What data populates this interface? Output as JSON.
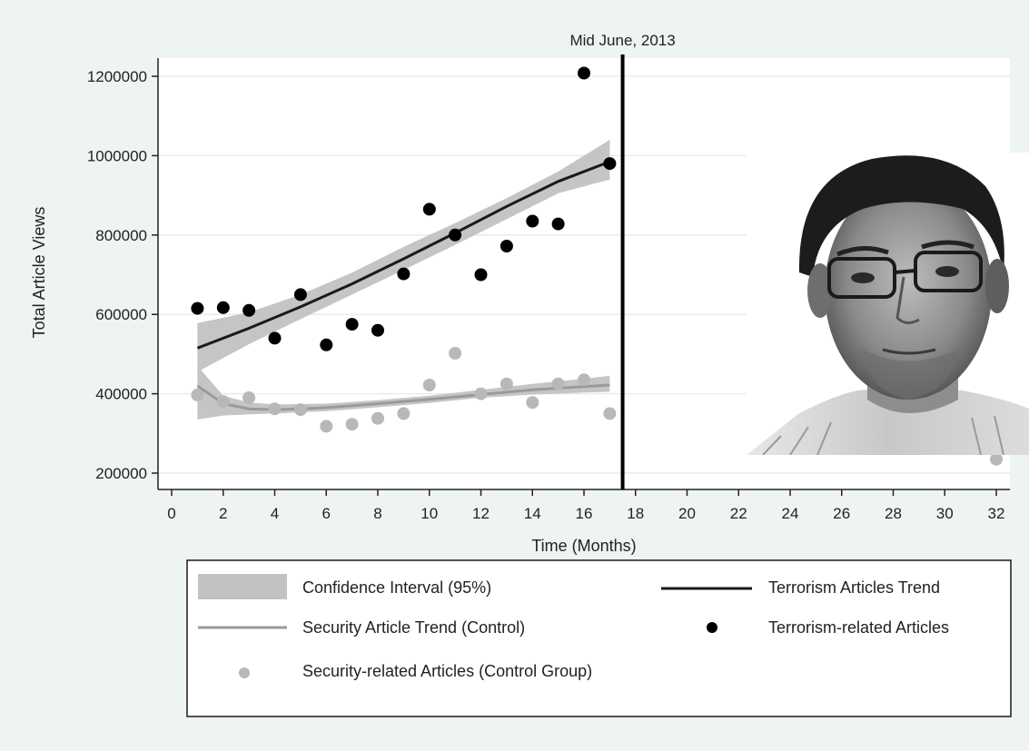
{
  "chart_data": {
    "type": "scatter",
    "xlabel": "Time (Months)",
    "ylabel": "Total Article Views",
    "xlim": [
      -0.5,
      32.5
    ],
    "ylim": [
      170000,
      1240000
    ],
    "xticks": [
      0,
      2,
      4,
      6,
      8,
      10,
      12,
      14,
      16,
      18,
      20,
      22,
      24,
      26,
      28,
      30,
      32
    ],
    "yticks": [
      200000,
      400000,
      600000,
      800000,
      1000000,
      1200000
    ],
    "grid": true,
    "legend_position": "bottom",
    "vline": {
      "x": 17.5,
      "label": "Mid June, 2013"
    },
    "confidence_bands": [
      {
        "name": "Confidence Interval (95%)",
        "x": [
          1,
          3,
          5,
          7,
          9,
          11,
          13,
          15,
          17
        ],
        "lower": [
          455000,
          525000,
          588000,
          650000,
          712000,
          775000,
          840000,
          905000,
          940000
        ],
        "upper": [
          578000,
          605000,
          650000,
          705000,
          770000,
          830000,
          893000,
          960000,
          1040000
        ]
      },
      {
        "name": "Confidence Interval (95%)",
        "x": [
          1,
          2,
          3,
          4,
          6,
          8,
          10,
          12,
          14,
          16,
          17
        ],
        "lower": [
          335000,
          345000,
          348000,
          350000,
          356000,
          366000,
          377000,
          390000,
          398000,
          403000,
          405000
        ],
        "upper": [
          470000,
          395000,
          378000,
          373000,
          375000,
          384000,
          395000,
          410000,
          425000,
          438000,
          445000
        ]
      }
    ],
    "series": [
      {
        "name": "Terrorism Articles Trend",
        "kind": "line",
        "color": "#1a1a1a",
        "x": [
          1,
          3,
          5,
          7,
          9,
          11,
          13,
          15,
          17
        ],
        "y": [
          515000,
          565000,
          619000,
          677000,
          740000,
          805000,
          872000,
          935000,
          985000
        ]
      },
      {
        "name": "Security Article Trend (Control)",
        "kind": "line",
        "color": "#9a9a9a",
        "x": [
          1,
          2,
          3,
          4,
          5,
          6,
          8,
          10,
          12,
          14,
          16,
          17
        ],
        "y": [
          420000,
          375000,
          362000,
          360000,
          362000,
          365000,
          375000,
          386000,
          398000,
          410000,
          418000,
          422000
        ]
      },
      {
        "name": "Terrorism-related Articles",
        "kind": "scatter",
        "color": "#000000",
        "x": [
          1,
          2,
          3,
          4,
          5,
          6,
          7,
          8,
          9,
          10,
          11,
          12,
          13,
          14,
          15,
          16,
          17
        ],
        "y": [
          615000,
          617000,
          610000,
          540000,
          650000,
          523000,
          575000,
          560000,
          702000,
          865000,
          800000,
          700000,
          772000,
          835000,
          828000,
          1208000,
          980000
        ]
      },
      {
        "name": "Security-related Articles (Control Group)",
        "kind": "scatter",
        "color": "#b8b8b8",
        "x": [
          1,
          2,
          3,
          4,
          5,
          6,
          7,
          8,
          9,
          10,
          11,
          12,
          13,
          14,
          15,
          16,
          17,
          32
        ],
        "y": [
          397000,
          380000,
          390000,
          362000,
          360000,
          318000,
          323000,
          338000,
          350000,
          422000,
          502000,
          400000,
          425000,
          378000,
          425000,
          435000,
          350000,
          235000
        ]
      }
    ],
    "legend": [
      {
        "label": "Confidence Interval (95%)",
        "symbol": "band"
      },
      {
        "label": "Terrorism Articles Trend",
        "symbol": "dark-line"
      },
      {
        "label": "Security Article Trend (Control)",
        "symbol": "gray-line"
      },
      {
        "label": "Terrorism-related Articles",
        "symbol": "dark-dot"
      },
      {
        "label": "Security-related Articles (Control Group)",
        "symbol": "gray-dot"
      }
    ],
    "colors": {
      "band": "#c2c2c2",
      "grid": "#e6ecec",
      "vline": "#000000",
      "frame_background": "#eef3f3"
    },
    "overlay_image": {
      "kind": "portrait-photo",
      "description_icon": "portrait-photo"
    }
  }
}
